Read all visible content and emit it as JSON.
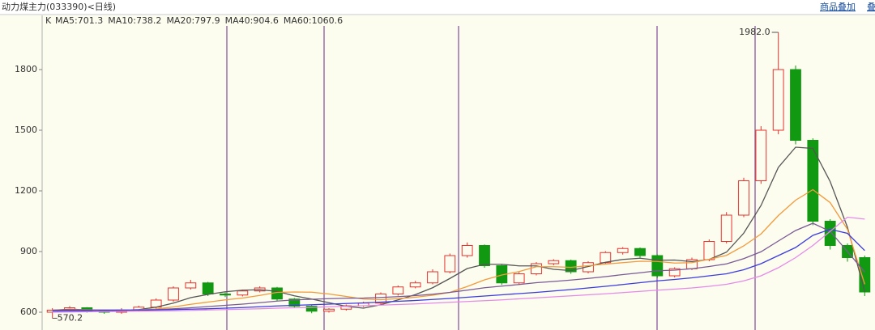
{
  "chart_data": {
    "type": "candlestick",
    "title": "动力煤主力(033390)<日线)",
    "buttons": [
      "商品叠加",
      "叠"
    ],
    "legend_prefix": "K",
    "up_color": "#e8322e",
    "down_color": "#119911",
    "ylim": [
      512,
      2024
    ],
    "yticks": [
      600,
      900,
      1200,
      1500,
      1800
    ],
    "high_label": "1982.0",
    "low_label": "570.2",
    "open": [
      600,
      610,
      622,
      605,
      600,
      612,
      625,
      660,
      720,
      745,
      690,
      685,
      705,
      720,
      665,
      630,
      605,
      615,
      632,
      645,
      690,
      725,
      745,
      800,
      880,
      930,
      830,
      745,
      790,
      840,
      855,
      800,
      845,
      895,
      915,
      880,
      780,
      815,
      860,
      950,
      1080,
      1250,
      1500,
      1800,
      1450,
      1050,
      930,
      870
    ],
    "high": [
      620,
      630,
      625,
      612,
      620,
      632,
      668,
      728,
      760,
      750,
      698,
      712,
      728,
      725,
      670,
      635,
      620,
      638,
      652,
      698,
      732,
      755,
      812,
      890,
      945,
      935,
      835,
      798,
      848,
      862,
      860,
      852,
      902,
      922,
      920,
      885,
      822,
      870,
      960,
      1095,
      1265,
      1520,
      1982,
      1820,
      1460,
      1060,
      940,
      880
    ],
    "low": [
      570.2,
      602,
      598,
      592,
      592,
      605,
      618,
      652,
      712,
      680,
      675,
      678,
      698,
      655,
      620,
      595,
      598,
      608,
      625,
      638,
      682,
      718,
      738,
      792,
      870,
      820,
      735,
      738,
      782,
      832,
      790,
      792,
      838,
      885,
      870,
      770,
      772,
      808,
      852,
      940,
      1070,
      1235,
      1480,
      1430,
      1030,
      910,
      850,
      680
    ],
    "close": [
      610,
      622,
      605,
      600,
      612,
      625,
      660,
      720,
      745,
      690,
      685,
      705,
      720,
      665,
      630,
      605,
      615,
      632,
      645,
      690,
      725,
      745,
      800,
      880,
      930,
      830,
      745,
      790,
      840,
      855,
      800,
      845,
      895,
      915,
      880,
      780,
      815,
      860,
      950,
      1080,
      1250,
      1500,
      1800,
      1450,
      1050,
      930,
      870,
      700
    ],
    "series": [
      {
        "name": "MA5:701.3",
        "color": "#555555",
        "values": [
          610,
          615,
          612,
          608,
          610,
          613,
          625,
          645,
          672,
          688,
          701,
          709,
          711,
          703,
          681,
          665,
          647,
          629,
          620,
          637,
          661,
          687,
          721,
          767,
          816,
          837,
          837,
          829,
          829,
          812,
          806,
          826,
          847,
          861,
          867,
          857,
          858,
          850,
          861,
          897,
          991,
          1128,
          1316,
          1416,
          1410,
          1246,
          1020,
          701.3
        ]
      },
      {
        "name": "MA10:738.2",
        "color": "#f39a3a",
        "values": [
          610,
          612,
          612,
          611,
          611,
          612,
          616,
          626,
          639,
          650,
          661,
          670,
          683,
          698,
          700,
          699,
          690,
          678,
          665,
          662,
          667,
          674,
          684,
          698,
          727,
          760,
          784,
          801,
          825,
          825,
          822,
          830,
          838,
          845,
          852,
          851,
          843,
          845,
          862,
          881,
          928,
          987,
          1078,
          1154,
          1206,
          1142,
          1010,
          738.2
        ]
      },
      {
        "name": "MA20:797.9",
        "color": "#7a5a96",
        "values": [
          610,
          611,
          611,
          611,
          611,
          611,
          613,
          617,
          622,
          628,
          634,
          640,
          647,
          655,
          661,
          664,
          667,
          669,
          670,
          673,
          677,
          682,
          689,
          698,
          709,
          721,
          729,
          737,
          746,
          752,
          759,
          767,
          776,
          786,
          795,
          805,
          808,
          815,
          826,
          839,
          865,
          899,
          952,
          1004,
          1040,
          1000,
          900,
          797.9
        ]
      },
      {
        "name": "MA40:904.6",
        "color": "#3b3be0",
        "values": [
          605,
          606,
          607,
          608,
          609,
          610,
          611,
          613,
          615,
          617,
          620,
          623,
          627,
          631,
          634,
          637,
          640,
          643,
          646,
          650,
          654,
          658,
          663,
          668,
          674,
          680,
          686,
          692,
          698,
          705,
          712,
          720,
          728,
          737,
          746,
          755,
          762,
          770,
          780,
          790,
          810,
          840,
          880,
          920,
          980,
          1010,
          990,
          904.6
        ]
      },
      {
        "name": "MA60:1060.6",
        "color": "#e58ae8",
        "values": [
          600,
          601,
          602,
          603,
          604,
          605,
          606,
          607,
          609,
          611,
          613,
          615,
          617,
          620,
          622,
          624,
          627,
          629,
          632,
          635,
          638,
          641,
          645,
          649,
          653,
          657,
          661,
          666,
          671,
          676,
          681,
          686,
          691,
          697,
          703,
          709,
          714,
          720,
          728,
          738,
          755,
          780,
          820,
          870,
          930,
          1000,
          1070,
          1060.6
        ]
      }
    ]
  }
}
